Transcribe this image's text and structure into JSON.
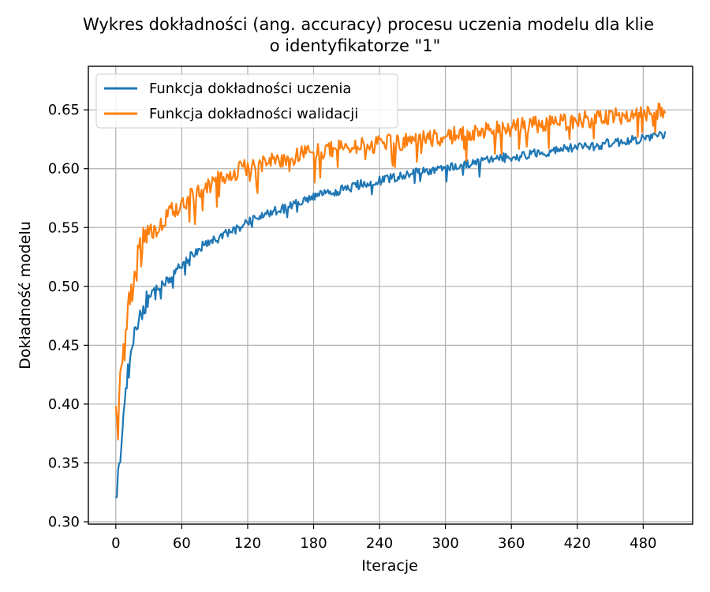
{
  "chart_data": {
    "type": "line",
    "title": [
      "Wykres dokładności (ang. accuracy) procesu uczenia modelu dla klie",
      "o identyfikatorze \"1\""
    ],
    "xlabel": "Iteracje",
    "ylabel": "Dokładność modelu",
    "xlim": [
      -25,
      525
    ],
    "ylim": [
      0.298,
      0.687
    ],
    "xticks": [
      0,
      60,
      120,
      180,
      240,
      300,
      360,
      420,
      480
    ],
    "yticks": [
      "0.30",
      "0.35",
      "0.40",
      "0.45",
      "0.50",
      "0.55",
      "0.60",
      "0.65"
    ],
    "grid": true,
    "legend_position": "upper-left",
    "series": [
      {
        "name": "Funkcja dokładności uczenia",
        "color": "#1f77b4",
        "x_step": 10,
        "values": [
          0.316,
          0.42,
          0.472,
          0.492,
          0.499,
          0.507,
          0.519,
          0.527,
          0.535,
          0.539,
          0.545,
          0.548,
          0.556,
          0.559,
          0.563,
          0.565,
          0.569,
          0.572,
          0.576,
          0.578,
          0.581,
          0.583,
          0.586,
          0.588,
          0.59,
          0.592,
          0.594,
          0.596,
          0.598,
          0.599,
          0.601,
          0.602,
          0.604,
          0.606,
          0.607,
          0.609,
          0.61,
          0.611,
          0.613,
          0.614,
          0.615,
          0.617,
          0.618,
          0.619,
          0.62,
          0.622,
          0.623,
          0.624,
          0.626,
          0.627,
          0.63
        ]
      },
      {
        "name": "Funkcja dokładności walidacji",
        "color": "#ff7f0e",
        "x_step": 10,
        "values": [
          0.388,
          0.47,
          0.525,
          0.545,
          0.55,
          0.563,
          0.57,
          0.578,
          0.583,
          0.59,
          0.595,
          0.598,
          0.602,
          0.604,
          0.606,
          0.608,
          0.61,
          0.612,
          0.614,
          0.615,
          0.617,
          0.618,
          0.619,
          0.62,
          0.621,
          0.622,
          0.623,
          0.624,
          0.625,
          0.626,
          0.628,
          0.629,
          0.63,
          0.631,
          0.632,
          0.634,
          0.635,
          0.636,
          0.637,
          0.638,
          0.639,
          0.64,
          0.641,
          0.642,
          0.643,
          0.644,
          0.645,
          0.646,
          0.647,
          0.648,
          0.648
        ]
      }
    ]
  }
}
